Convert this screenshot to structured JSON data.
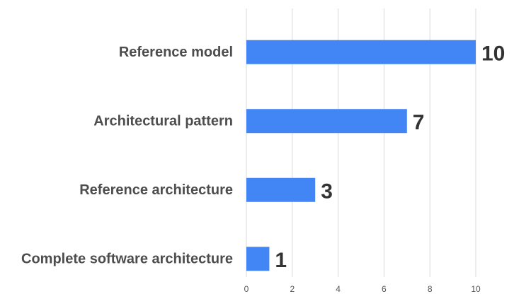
{
  "chart_data": {
    "type": "bar",
    "orientation": "horizontal",
    "categories": [
      "Reference model",
      "Architectural pattern",
      "Reference architecture",
      "Complete software architecture"
    ],
    "values": [
      10,
      7,
      3,
      1
    ],
    "data_labels": [
      "10",
      "7",
      "3",
      "1"
    ],
    "x_ticks": [
      "0",
      "2",
      "4",
      "6",
      "8",
      "10"
    ],
    "xlim": [
      0,
      11
    ],
    "title": "",
    "xlabel": "",
    "ylabel": "",
    "grid": "vertical",
    "legend": "none",
    "bar_color": "#4285f4"
  }
}
